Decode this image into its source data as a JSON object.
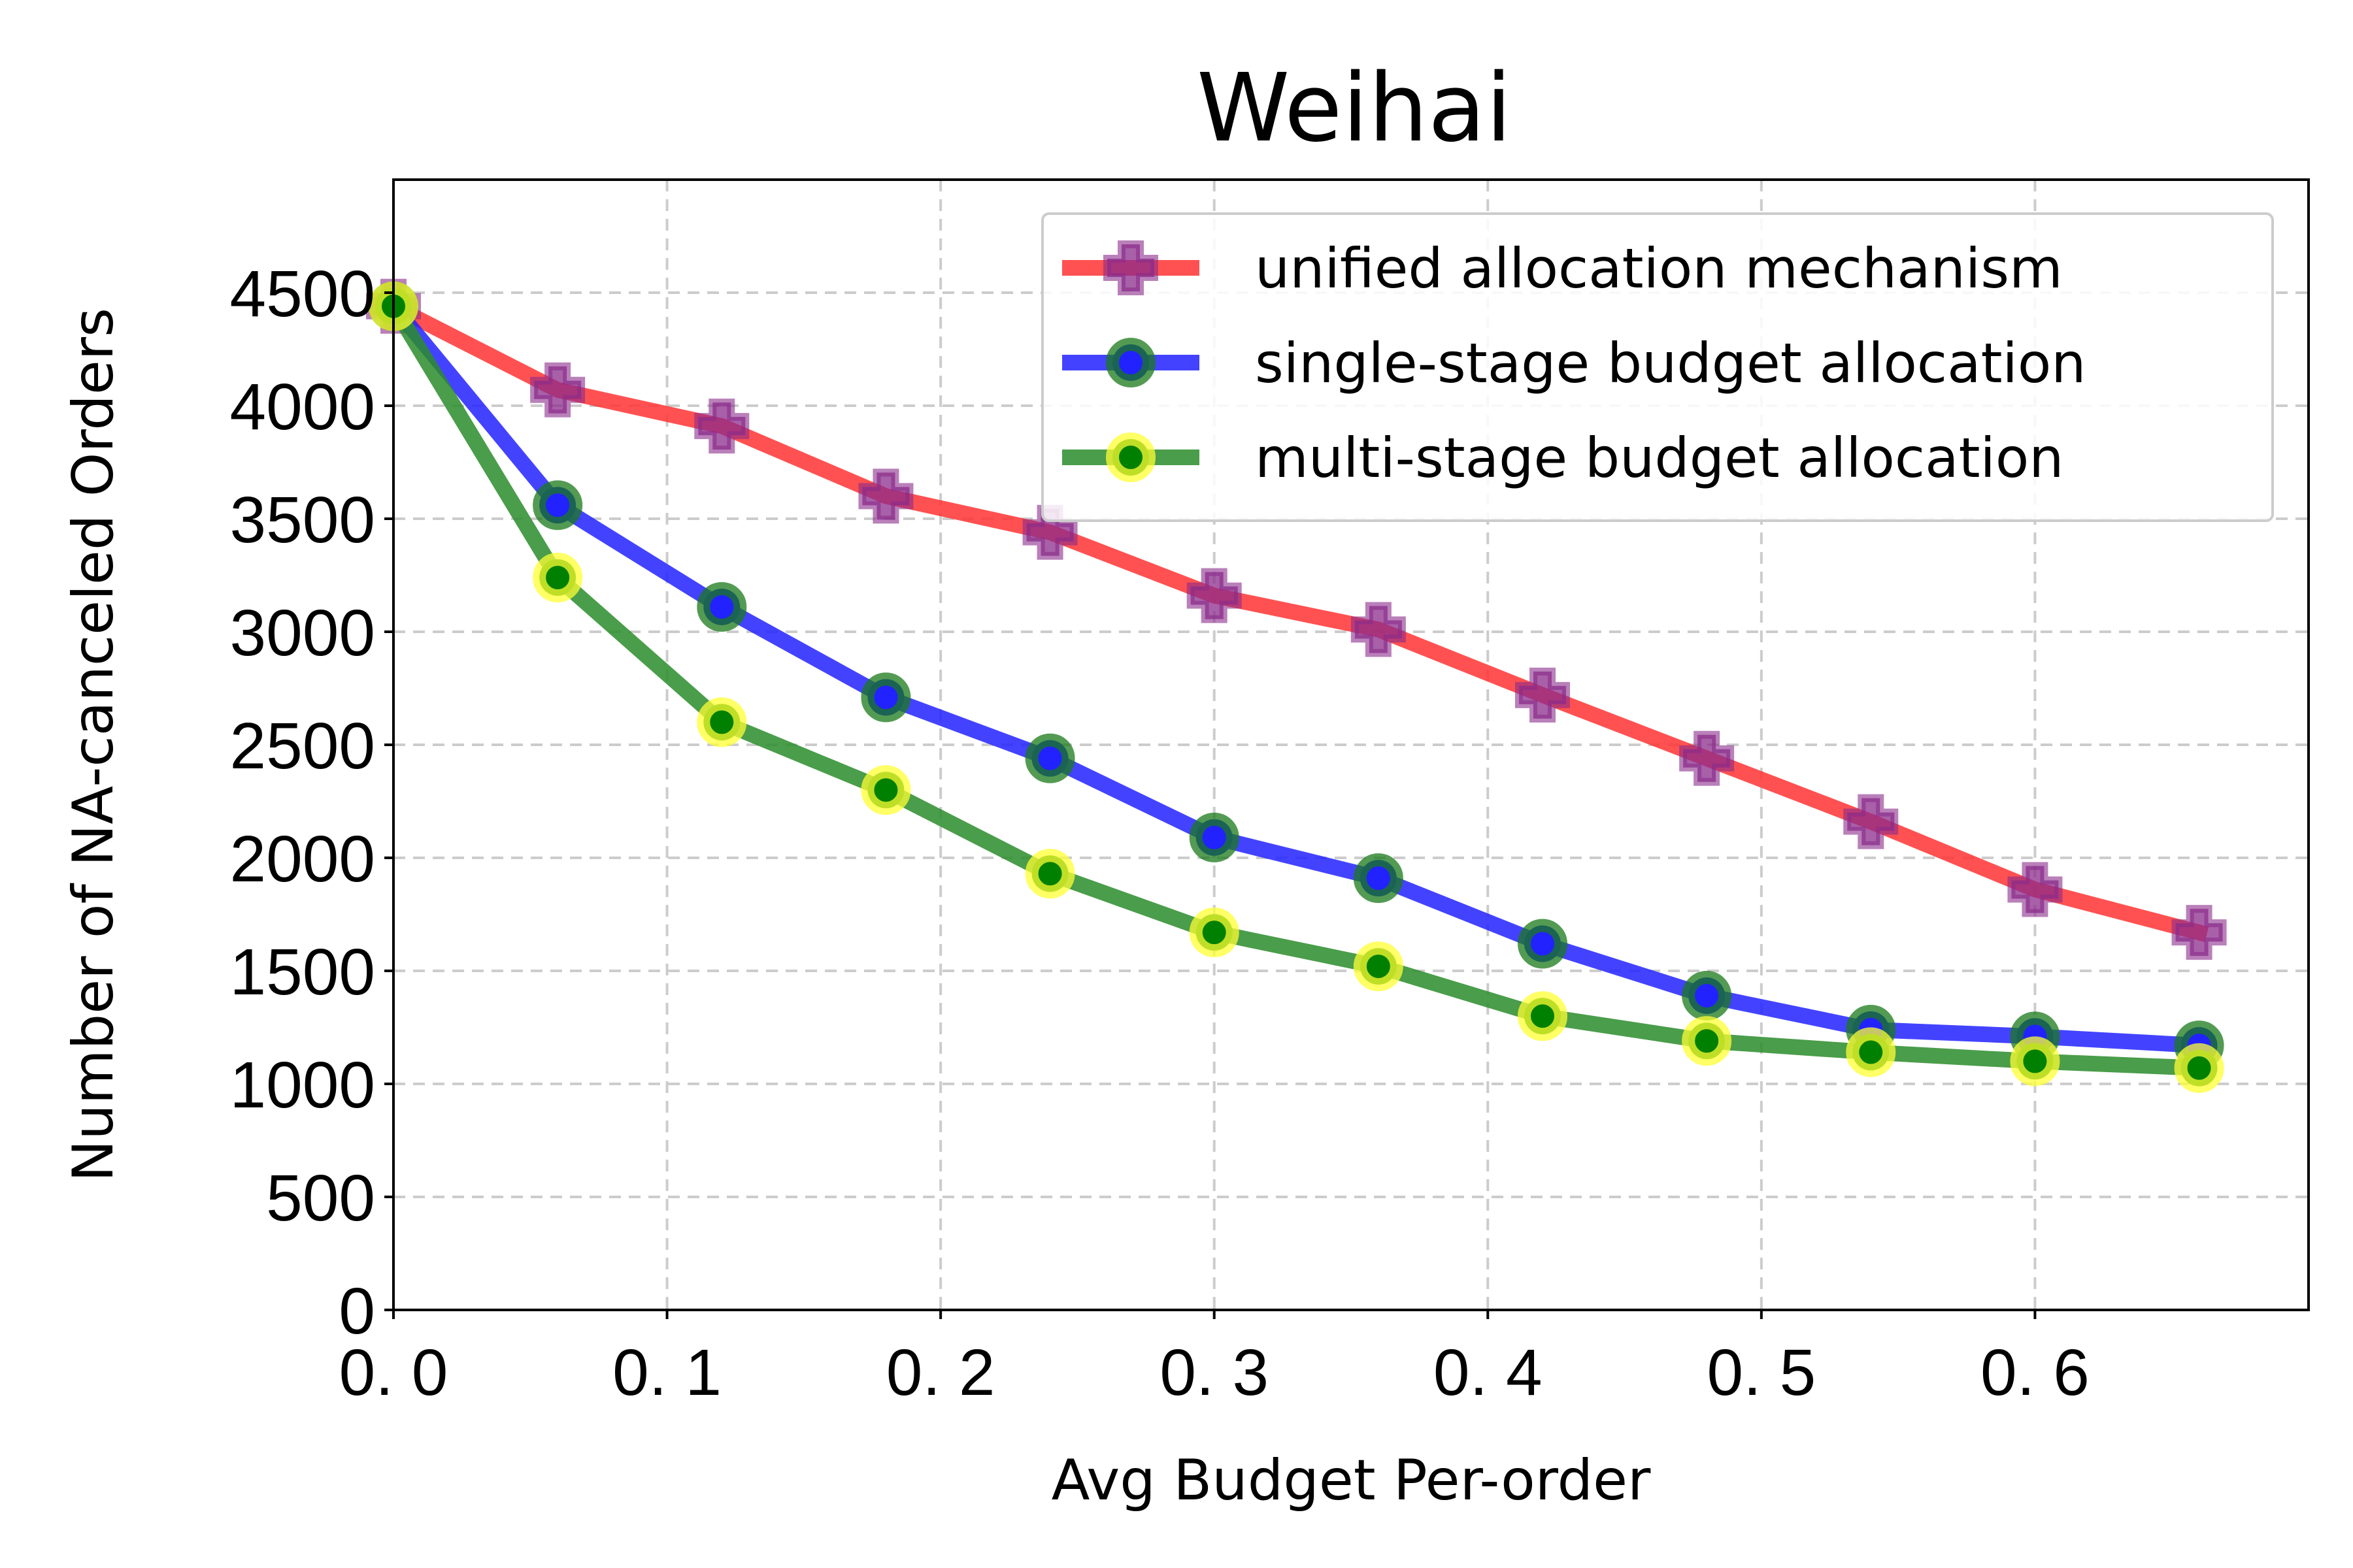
{
  "chart_data": {
    "type": "line",
    "title": "Weihai",
    "xlabel": "Avg Budget Per-order",
    "ylabel": "Number of NA-canceled Orders",
    "xlim": [
      0.0,
      0.7
    ],
    "ylim": [
      0,
      5000
    ],
    "grid": true,
    "legend_position": "top-right",
    "x_ticks": [
      0.0,
      0.1,
      0.2,
      0.3,
      0.4,
      0.5,
      0.6
    ],
    "x_tick_labels": [
      "0. 0",
      "0. 1",
      "0. 2",
      "0. 3",
      "0. 4",
      "0. 5",
      "0. 6"
    ],
    "y_ticks": [
      0,
      500,
      1000,
      1500,
      2000,
      2500,
      3000,
      3500,
      4000,
      4500
    ],
    "y_tick_labels": [
      "0",
      "500",
      "1000",
      "1500",
      "2000",
      "2500",
      "3000",
      "3500",
      "4000",
      "4500"
    ],
    "x": [
      0.0,
      0.06,
      0.12,
      0.18,
      0.24,
      0.3,
      0.36,
      0.42,
      0.48,
      0.54,
      0.6,
      0.66
    ],
    "series": [
      {
        "name": "unified allocation mechanism",
        "line_color": "#ff3333",
        "marker": "plus",
        "marker_color": "#8b2b8b",
        "values": [
          4440,
          4070,
          3910,
          3600,
          3440,
          3160,
          3010,
          2720,
          2440,
          2160,
          1860,
          1670
        ]
      },
      {
        "name": "single-stage budget allocation",
        "line_color": "#2222ff",
        "marker": "circle",
        "marker_color": "#1a7a1a",
        "marker_center": "#2222ff",
        "values": [
          4440,
          3560,
          3110,
          2710,
          2440,
          2090,
          1910,
          1620,
          1390,
          1240,
          1210,
          1170
        ]
      },
      {
        "name": "multi-stage budget allocation",
        "line_color": "#2a8c2a",
        "marker": "circle",
        "marker_color": "#ffff33",
        "marker_center": "#008000",
        "values": [
          4440,
          3240,
          2600,
          2300,
          1930,
          1670,
          1520,
          1300,
          1190,
          1140,
          1100,
          1070
        ]
      }
    ]
  }
}
